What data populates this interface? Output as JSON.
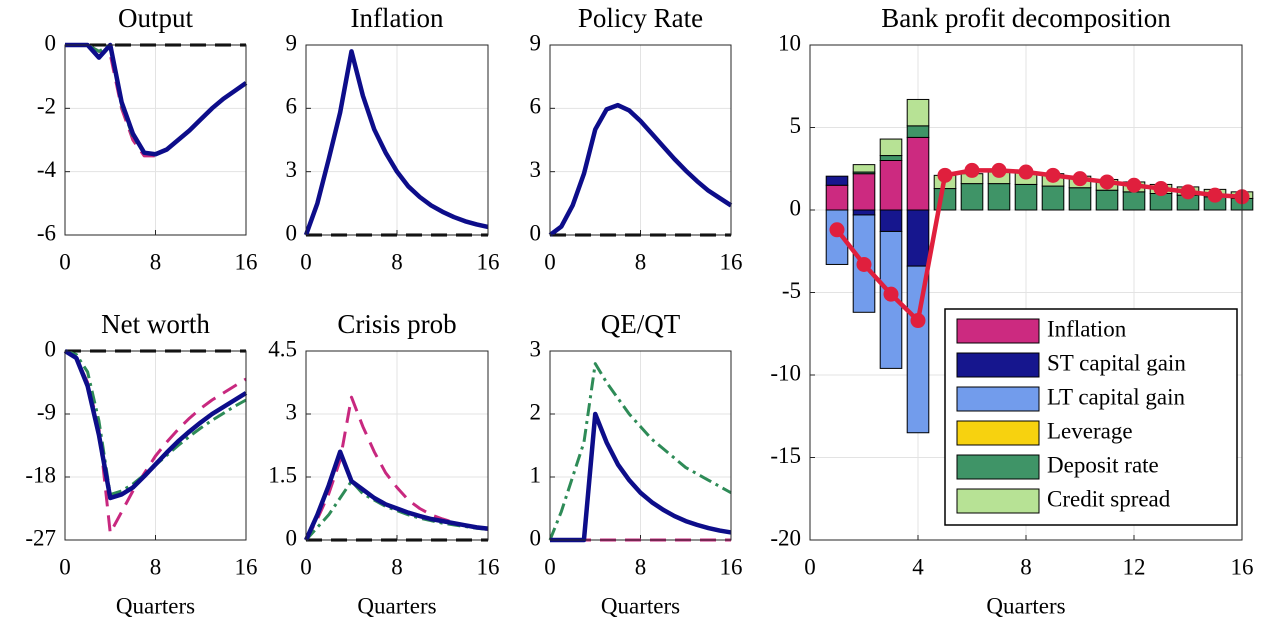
{
  "chart_data": [
    {
      "type": "line",
      "title": "Output",
      "x": [
        0,
        1,
        2,
        3,
        4,
        5,
        6,
        7,
        8,
        9,
        10,
        11,
        12,
        13,
        14,
        15,
        16
      ],
      "xlim": [
        0,
        16
      ],
      "xticks": [
        0,
        8,
        16
      ],
      "ylim": [
        -6,
        0
      ],
      "yticks": [
        -6,
        -4,
        -2,
        0
      ],
      "grid": true,
      "series": [
        {
          "color": "#000000",
          "dash": "dashed",
          "values": [
            0,
            0,
            0,
            0,
            0,
            0,
            0,
            0,
            0,
            0,
            0,
            0,
            0,
            0,
            0,
            0,
            0
          ]
        },
        {
          "color": "#c8287f",
          "dash": "dashed",
          "values": [
            0,
            0,
            0,
            -0.2,
            -0.3,
            -2.0,
            -3.0,
            -3.5,
            -3.5,
            -3.3,
            -3.0,
            -2.7,
            -2.35,
            -2.0,
            -1.7,
            -1.45,
            -1.2
          ]
        },
        {
          "color": "#2e8b57",
          "dash": "dashdot",
          "values": [
            0,
            0,
            0,
            -0.2,
            0,
            -1.9,
            -2.9,
            -3.4,
            -3.45,
            -3.3,
            -3.0,
            -2.7,
            -2.35,
            -2.0,
            -1.7,
            -1.45,
            -1.2
          ]
        },
        {
          "color": "#0d0d8a",
          "dash": "solid",
          "values": [
            0,
            0,
            0,
            -0.4,
            0,
            -1.8,
            -2.8,
            -3.4,
            -3.45,
            -3.3,
            -3.0,
            -2.7,
            -2.35,
            -2.0,
            -1.7,
            -1.45,
            -1.2
          ]
        }
      ]
    },
    {
      "type": "line",
      "title": "Inflation",
      "x": [
        0,
        1,
        2,
        3,
        4,
        5,
        6,
        7,
        8,
        9,
        10,
        11,
        12,
        13,
        14,
        15,
        16
      ],
      "xlim": [
        0,
        16
      ],
      "xticks": [
        0,
        8,
        16
      ],
      "ylim": [
        0,
        9
      ],
      "yticks": [
        0,
        3,
        6,
        9
      ],
      "grid": true,
      "series": [
        {
          "color": "#000000",
          "dash": "dashed",
          "values": [
            0,
            0,
            0,
            0,
            0,
            0,
            0,
            0,
            0,
            0,
            0,
            0,
            0,
            0,
            0,
            0,
            0
          ]
        },
        {
          "color": "#0d0d8a",
          "dash": "solid",
          "values": [
            0,
            1.5,
            3.6,
            5.8,
            8.7,
            6.6,
            5.0,
            3.9,
            3.0,
            2.3,
            1.8,
            1.4,
            1.1,
            0.85,
            0.65,
            0.5,
            0.38
          ]
        }
      ]
    },
    {
      "type": "line",
      "title": "Policy Rate",
      "x": [
        0,
        1,
        2,
        3,
        4,
        5,
        6,
        7,
        8,
        9,
        10,
        11,
        12,
        13,
        14,
        15,
        16
      ],
      "xlim": [
        0,
        16
      ],
      "xticks": [
        0,
        8,
        16
      ],
      "ylim": [
        0,
        9
      ],
      "yticks": [
        0,
        3,
        6,
        9
      ],
      "grid": true,
      "series": [
        {
          "color": "#000000",
          "dash": "dashed",
          "values": [
            0,
            0,
            0,
            0,
            0,
            0,
            0,
            0,
            0,
            0,
            0,
            0,
            0,
            0,
            0,
            0,
            0
          ]
        },
        {
          "color": "#0d0d8a",
          "dash": "solid",
          "values": [
            0,
            0.4,
            1.4,
            2.9,
            5.0,
            5.95,
            6.15,
            5.9,
            5.4,
            4.8,
            4.2,
            3.6,
            3.05,
            2.55,
            2.1,
            1.75,
            1.4
          ]
        }
      ]
    },
    {
      "type": "line",
      "title": "Net worth",
      "xlabel": "Quarters",
      "x": [
        0,
        1,
        2,
        3,
        4,
        5,
        6,
        7,
        8,
        9,
        10,
        11,
        12,
        13,
        14,
        15,
        16
      ],
      "xlim": [
        0,
        16
      ],
      "xticks": [
        0,
        8,
        16
      ],
      "ylim": [
        -27,
        0
      ],
      "yticks": [
        -27,
        -18,
        -9,
        0
      ],
      "grid": true,
      "series": [
        {
          "color": "#000000",
          "dash": "dashed",
          "values": [
            0,
            0,
            0,
            0,
            0,
            0,
            0,
            0,
            0,
            0,
            0,
            0,
            0,
            0,
            0,
            0,
            0
          ]
        },
        {
          "color": "#c8287f",
          "dash": "dashed",
          "values": [
            0,
            -1,
            -4.5,
            -11,
            -26,
            -23,
            -20,
            -17.5,
            -15,
            -13,
            -11.2,
            -9.6,
            -8.2,
            -7,
            -6,
            -5,
            -4
          ]
        },
        {
          "color": "#2e8b57",
          "dash": "dashdot",
          "values": [
            0,
            -0.5,
            -3,
            -10,
            -20.5,
            -20,
            -19,
            -17.7,
            -16.3,
            -14.9,
            -13.5,
            -12.2,
            -11,
            -9.9,
            -8.9,
            -7.9,
            -7
          ]
        },
        {
          "color": "#0d0d8a",
          "dash": "solid",
          "values": [
            0,
            -1,
            -5,
            -12,
            -21,
            -20.5,
            -19.5,
            -17.9,
            -16.2,
            -14.5,
            -12.9,
            -11.5,
            -10.2,
            -9.0,
            -8.0,
            -7.0,
            -6.0
          ]
        }
      ]
    },
    {
      "type": "line",
      "title": "Crisis prob",
      "xlabel": "Quarters",
      "x": [
        0,
        1,
        2,
        3,
        4,
        5,
        6,
        7,
        8,
        9,
        10,
        11,
        12,
        13,
        14,
        15,
        16
      ],
      "xlim": [
        0,
        16
      ],
      "xticks": [
        0,
        8,
        16
      ],
      "ylim": [
        0,
        4.5
      ],
      "yticks": [
        0,
        1.5,
        3,
        4.5
      ],
      "grid": true,
      "series": [
        {
          "color": "#000000",
          "dash": "dashed",
          "values": [
            0,
            0,
            0,
            0,
            0,
            0,
            0,
            0,
            0,
            0,
            0,
            0,
            0,
            0,
            0,
            0,
            0
          ]
        },
        {
          "color": "#c8287f",
          "dash": "dashed",
          "values": [
            0,
            0.5,
            1.1,
            1.9,
            3.4,
            2.7,
            2.1,
            1.6,
            1.25,
            0.95,
            0.75,
            0.6,
            0.5,
            0.42,
            0.35,
            0.3,
            0.25
          ]
        },
        {
          "color": "#2e8b57",
          "dash": "dashdot",
          "values": [
            0,
            0.3,
            0.6,
            1.0,
            1.4,
            1.1,
            0.95,
            0.8,
            0.7,
            0.6,
            0.52,
            0.46,
            0.4,
            0.36,
            0.32,
            0.28,
            0.25
          ]
        },
        {
          "color": "#0d0d8a",
          "dash": "solid",
          "values": [
            0,
            0.6,
            1.3,
            2.1,
            1.4,
            1.2,
            1.0,
            0.85,
            0.75,
            0.65,
            0.57,
            0.5,
            0.45,
            0.4,
            0.35,
            0.3,
            0.27
          ]
        }
      ]
    },
    {
      "type": "line",
      "title": "QE/QT",
      "xlabel": "Quarters",
      "x": [
        0,
        1,
        2,
        3,
        4,
        5,
        6,
        7,
        8,
        9,
        10,
        11,
        12,
        13,
        14,
        15,
        16
      ],
      "xlim": [
        0,
        16
      ],
      "xticks": [
        0,
        8,
        16
      ],
      "ylim": [
        0,
        3
      ],
      "yticks": [
        0,
        1,
        2,
        3
      ],
      "grid": true,
      "series": [
        {
          "color": "#c8287f",
          "dash": "dashed",
          "values": [
            0,
            0,
            0,
            0,
            0,
            0,
            0,
            0,
            0,
            0,
            0,
            0,
            0,
            0,
            0,
            0,
            0
          ]
        },
        {
          "color": "#2e8b57",
          "dash": "dashdot",
          "values": [
            0,
            0.45,
            1.0,
            1.55,
            2.8,
            2.5,
            2.25,
            2.0,
            1.8,
            1.6,
            1.45,
            1.3,
            1.15,
            1.05,
            0.95,
            0.85,
            0.75
          ]
        },
        {
          "color": "#0d0d8a",
          "dash": "solid",
          "values": [
            0,
            0,
            0,
            0,
            2.0,
            1.55,
            1.2,
            0.95,
            0.75,
            0.6,
            0.48,
            0.38,
            0.3,
            0.24,
            0.19,
            0.15,
            0.12
          ]
        }
      ]
    },
    {
      "type": "bar",
      "stacked": true,
      "title": "Bank profit decomposition",
      "xlabel": "Quarters",
      "x": [
        1,
        2,
        3,
        4,
        5,
        6,
        7,
        8,
        9,
        10,
        11,
        12,
        13,
        14,
        15,
        16
      ],
      "xlim": [
        0,
        16
      ],
      "xticks": [
        0,
        4,
        8,
        12,
        16
      ],
      "ylim": [
        -20,
        10
      ],
      "yticks": [
        -20,
        -15,
        -10,
        -5,
        0,
        5,
        10
      ],
      "grid": true,
      "legend": "lower right",
      "series": [
        {
          "name": "Inflation",
          "color": "#cc2a80",
          "values": [
            1.5,
            2.2,
            3.0,
            4.4,
            0,
            0,
            0,
            0,
            0,
            0,
            0,
            0,
            0,
            0,
            0,
            0
          ]
        },
        {
          "name": "ST capital gain",
          "color": "#16168e",
          "values": [
            0.55,
            -0.3,
            -1.3,
            -3.4,
            0,
            0,
            0,
            0,
            0,
            0,
            0,
            0,
            0,
            0,
            0,
            0
          ]
        },
        {
          "name": "LT capital gain",
          "color": "#729cec",
          "values": [
            -3.3,
            -5.9,
            -8.3,
            -10.1,
            0,
            0,
            0,
            0,
            0,
            0,
            0,
            0,
            0,
            0,
            0,
            0
          ]
        },
        {
          "name": "Leverage",
          "color": "#f7d20f",
          "values": [
            0,
            0,
            0,
            0,
            0,
            0,
            0,
            0,
            0,
            0,
            0,
            0,
            0,
            0,
            0,
            0
          ]
        },
        {
          "name": "Deposit rate",
          "color": "#3f9467",
          "values": [
            0,
            0.1,
            0.3,
            0.7,
            1.3,
            1.6,
            1.6,
            1.55,
            1.45,
            1.35,
            1.2,
            1.1,
            1.0,
            0.9,
            0.8,
            0.7
          ]
        },
        {
          "name": "Credit spread",
          "color": "#b7e295",
          "values": [
            0,
            0.45,
            1.0,
            1.6,
            0.8,
            0.6,
            0.7,
            0.75,
            0.75,
            0.7,
            0.65,
            0.6,
            0.55,
            0.5,
            0.45,
            0.4
          ]
        }
      ],
      "line": {
        "color": "#e01f3d",
        "values": [
          -1.2,
          -3.3,
          -5.1,
          -6.7,
          2.1,
          2.4,
          2.4,
          2.3,
          2.1,
          1.9,
          1.7,
          1.5,
          1.3,
          1.1,
          0.9,
          0.8
        ]
      }
    }
  ]
}
